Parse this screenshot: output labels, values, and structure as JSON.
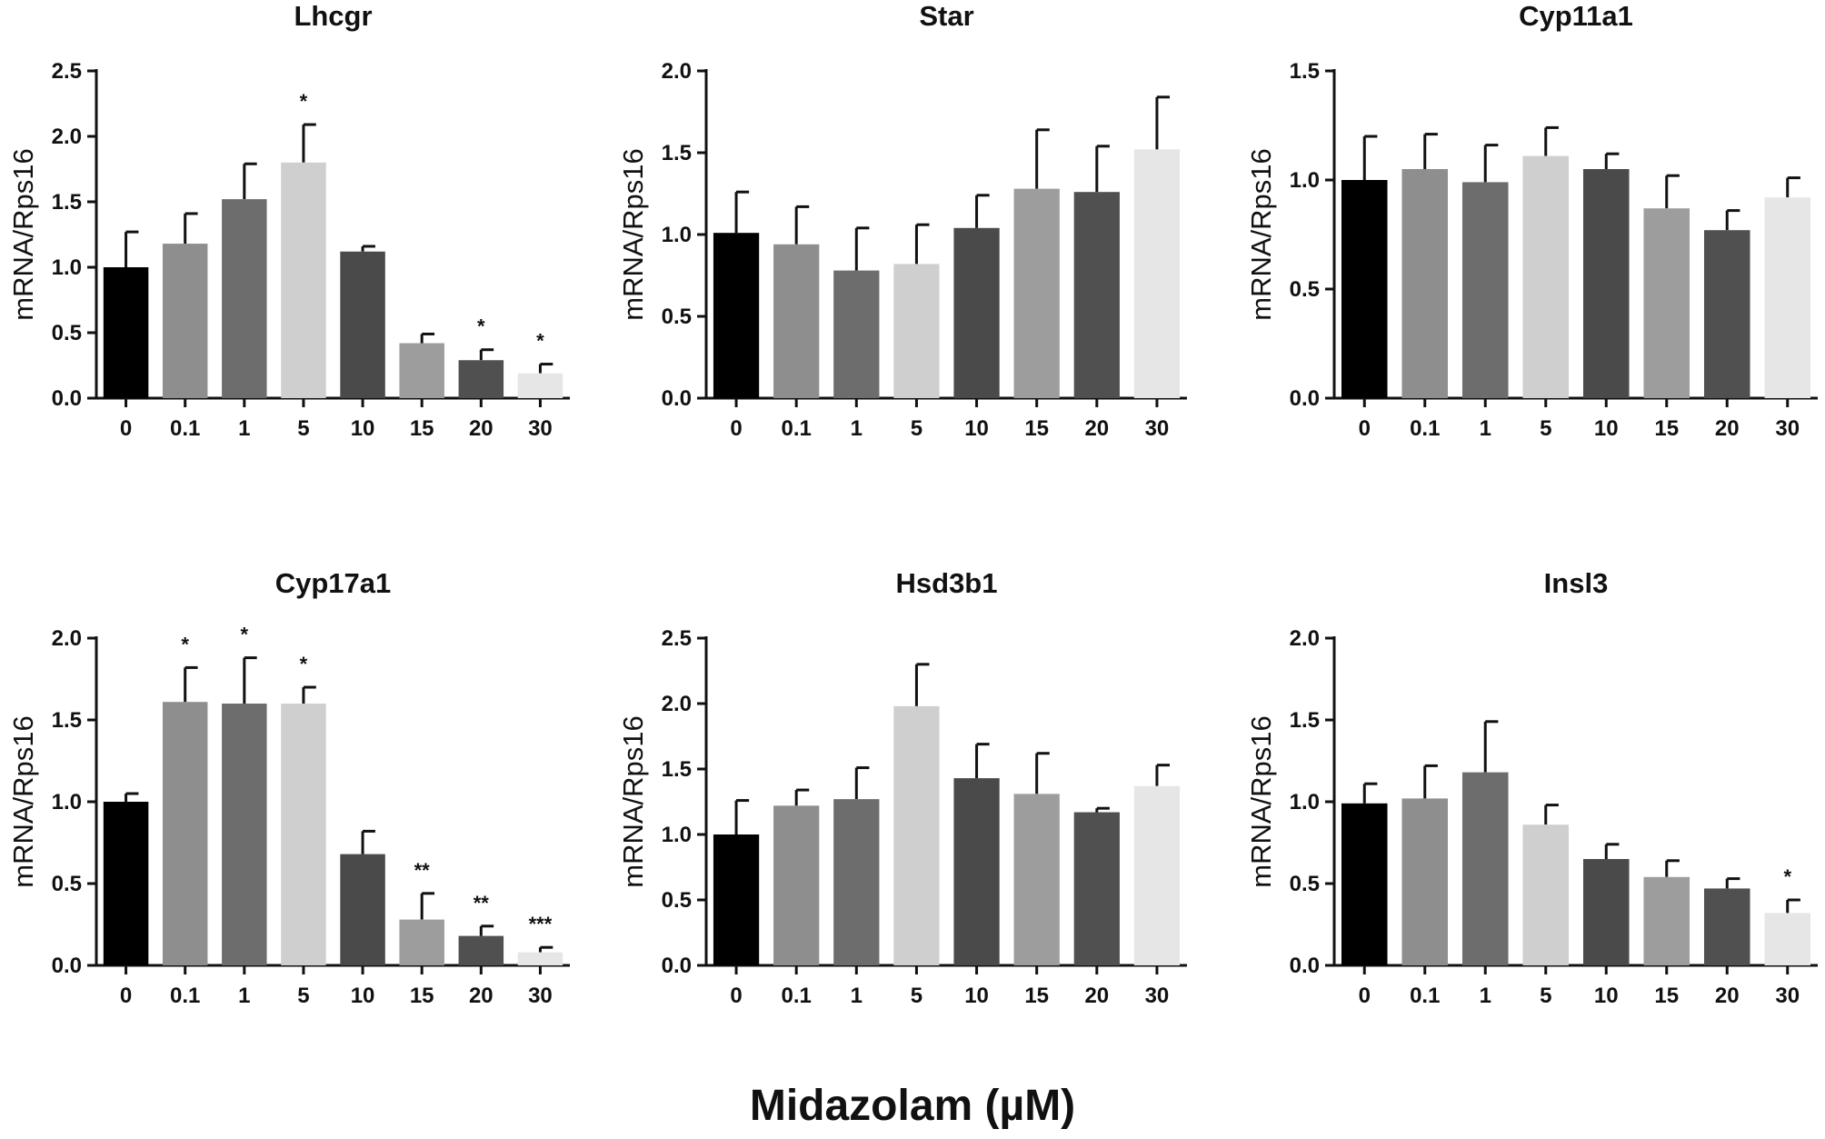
{
  "chart_data": [
    {
      "type": "bar",
      "title": "Lhcgr",
      "ylabel": "mRNA/Rps16",
      "xlabel": "",
      "categories": [
        "0",
        "0.1",
        "1",
        "5",
        "10",
        "15",
        "20",
        "30"
      ],
      "values": [
        1.0,
        1.18,
        1.52,
        1.8,
        1.12,
        0.42,
        0.29,
        0.19
      ],
      "errors": [
        0.27,
        0.23,
        0.27,
        0.29,
        0.04,
        0.07,
        0.08,
        0.07
      ],
      "significance": [
        "",
        "",
        "",
        "*",
        "",
        "",
        "*",
        "*"
      ],
      "ylim": [
        0,
        2.5
      ],
      "yticks": [
        "0.0",
        "0.5",
        "1.0",
        "1.5",
        "2.0",
        "2.5"
      ]
    },
    {
      "type": "bar",
      "title": "Star",
      "ylabel": "mRNA/Rps16",
      "xlabel": "",
      "categories": [
        "0",
        "0.1",
        "1",
        "5",
        "10",
        "15",
        "20",
        "30"
      ],
      "values": [
        1.01,
        0.94,
        0.78,
        0.82,
        1.04,
        1.28,
        1.26,
        1.52
      ],
      "errors": [
        0.25,
        0.23,
        0.26,
        0.24,
        0.2,
        0.36,
        0.28,
        0.32
      ],
      "significance": [
        "",
        "",
        "",
        "",
        "",
        "",
        "",
        ""
      ],
      "ylim": [
        0,
        2.0
      ],
      "yticks": [
        "0.0",
        "0.5",
        "1.0",
        "1.5",
        "2.0"
      ]
    },
    {
      "type": "bar",
      "title": "Cyp11a1",
      "ylabel": "mRNA/Rps16",
      "xlabel": "",
      "categories": [
        "0",
        "0.1",
        "1",
        "5",
        "10",
        "15",
        "20",
        "30"
      ],
      "values": [
        1.0,
        1.05,
        0.99,
        1.11,
        1.05,
        0.87,
        0.77,
        0.92
      ],
      "errors": [
        0.2,
        0.16,
        0.17,
        0.13,
        0.07,
        0.15,
        0.09,
        0.09
      ],
      "significance": [
        "",
        "",
        "",
        "",
        "",
        "",
        "",
        ""
      ],
      "ylim": [
        0,
        1.5
      ],
      "yticks": [
        "0.0",
        "0.5",
        "1.0",
        "1.5"
      ]
    },
    {
      "type": "bar",
      "title": "Cyp17a1",
      "ylabel": "mRNA/Rps16",
      "xlabel": "",
      "categories": [
        "0",
        "0.1",
        "1",
        "5",
        "10",
        "15",
        "20",
        "30"
      ],
      "values": [
        1.0,
        1.61,
        1.6,
        1.6,
        0.68,
        0.28,
        0.18,
        0.08
      ],
      "errors": [
        0.05,
        0.21,
        0.28,
        0.1,
        0.14,
        0.16,
        0.06,
        0.03
      ],
      "significance": [
        "",
        "*",
        "*",
        "*",
        "",
        "**",
        "**",
        "***"
      ],
      "ylim": [
        0,
        2.0
      ],
      "yticks": [
        "0.0",
        "0.5",
        "1.0",
        "1.5",
        "2.0"
      ]
    },
    {
      "type": "bar",
      "title": "Hsd3b1",
      "ylabel": "mRNA/Rps16",
      "xlabel": "",
      "categories": [
        "0",
        "0.1",
        "1",
        "5",
        "10",
        "15",
        "20",
        "30"
      ],
      "values": [
        1.0,
        1.22,
        1.27,
        1.98,
        1.43,
        1.31,
        1.17,
        1.37
      ],
      "errors": [
        0.26,
        0.12,
        0.24,
        0.32,
        0.26,
        0.31,
        0.03,
        0.16
      ],
      "significance": [
        "",
        "",
        "",
        "",
        "",
        "",
        "",
        ""
      ],
      "ylim": [
        0,
        2.5
      ],
      "yticks": [
        "0.0",
        "0.5",
        "1.0",
        "1.5",
        "2.0",
        "2.5"
      ]
    },
    {
      "type": "bar",
      "title": "Insl3",
      "ylabel": "mRNA/Rps16",
      "xlabel": "",
      "categories": [
        "0",
        "0.1",
        "1",
        "5",
        "10",
        "15",
        "20",
        "30"
      ],
      "values": [
        0.99,
        1.02,
        1.18,
        0.86,
        0.65,
        0.54,
        0.47,
        0.32
      ],
      "errors": [
        0.12,
        0.2,
        0.31,
        0.12,
        0.09,
        0.1,
        0.06,
        0.08
      ],
      "significance": [
        "",
        "",
        "",
        "",
        "",
        "",
        "",
        "*"
      ],
      "ylim": [
        0,
        2.0
      ],
      "yticks": [
        "0.0",
        "0.5",
        "1.0",
        "1.5",
        "2.0"
      ]
    }
  ],
  "shared_xlabel": "Midazolam (µM)",
  "colors": {
    "bars": [
      "#000000",
      "#8e8e8e",
      "#6d6d6d",
      "#cfcfcf",
      "#4a4a4a",
      "#9d9d9d",
      "#505050",
      "#e6e6e6"
    ],
    "axis": "#111111",
    "text": "#111111"
  }
}
